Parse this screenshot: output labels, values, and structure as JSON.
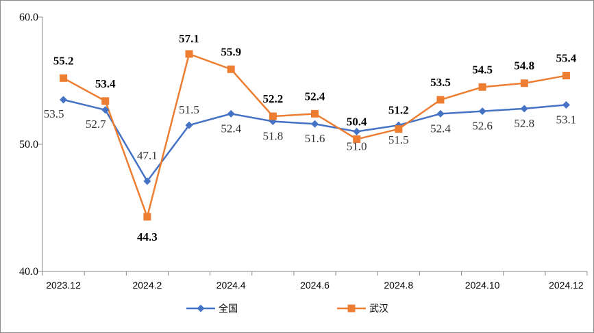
{
  "chart_data": {
    "type": "line",
    "title": "",
    "xlabel": "",
    "ylabel": "",
    "ylim": [
      40.0,
      60.0
    ],
    "yticks": [
      "40.0",
      "50.0",
      "60.0"
    ],
    "categories": [
      "2023.12",
      "2024.1",
      "2024.2",
      "2024.3",
      "2024.4",
      "2024.5",
      "2024.6",
      "2024.7",
      "2024.8",
      "2024.9",
      "2024.10",
      "2024.11",
      "2024.12"
    ],
    "xtick_labels": [
      "2023.12",
      "2024.2",
      "2024.4",
      "2024.6",
      "2024.8",
      "2024.10",
      "2024.12"
    ],
    "grid": false,
    "legend": "bottom",
    "series": [
      {
        "name": "全国",
        "color": "#4472C4",
        "marker": "diamond",
        "values": [
          53.5,
          52.7,
          47.1,
          51.5,
          52.4,
          51.8,
          51.6,
          51.0,
          51.5,
          52.4,
          52.6,
          52.8,
          53.1
        ],
        "labels": [
          "53.5",
          "52.7",
          "47.1",
          "51.5",
          "52.4",
          "51.8",
          "51.6",
          "51.0",
          "51.5",
          "52.4",
          "52.6",
          "52.8",
          "53.1"
        ]
      },
      {
        "name": "武汉",
        "color": "#ED7D31",
        "marker": "square",
        "values": [
          55.2,
          53.4,
          44.3,
          57.1,
          55.9,
          52.2,
          52.4,
          50.4,
          51.2,
          53.5,
          54.5,
          54.8,
          55.4
        ],
        "labels": [
          "55.2",
          "53.4",
          "44.3",
          "57.1",
          "55.9",
          "52.2",
          "52.4",
          "50.4",
          "51.2",
          "53.5",
          "54.5",
          "54.8",
          "55.4"
        ]
      }
    ]
  }
}
